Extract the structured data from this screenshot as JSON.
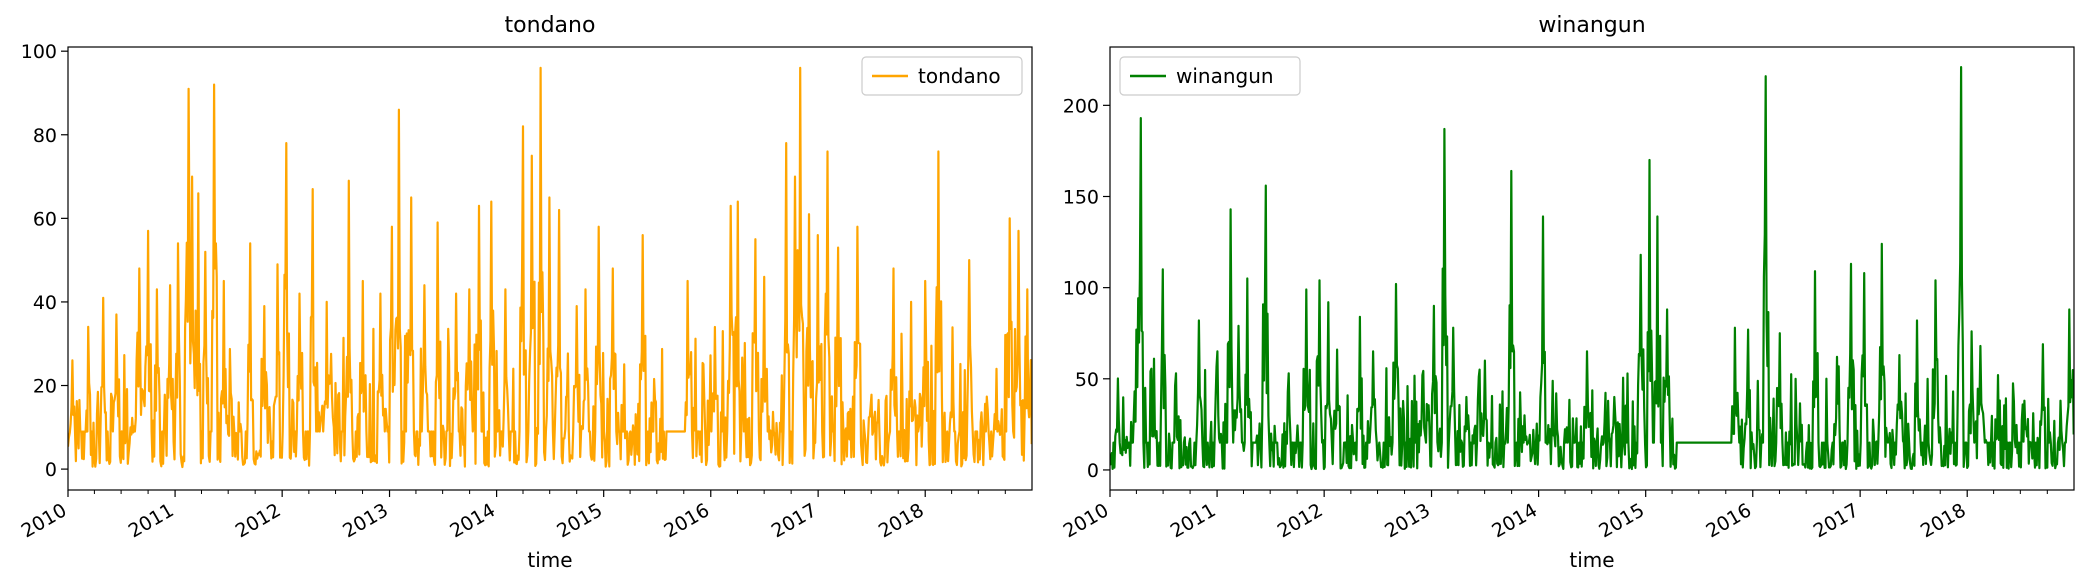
{
  "chart_data": [
    {
      "type": "line",
      "title": "tondano",
      "xlabel": "time",
      "ylabel": "",
      "x_tick_labels": [
        "2010",
        "2011",
        "2012",
        "2013",
        "2014",
        "2015",
        "2016",
        "2017",
        "2018"
      ],
      "y_tick_labels": [
        "0",
        "20",
        "40",
        "60",
        "80",
        "100"
      ],
      "xlim": [
        "2010-01-01",
        "2018-12-31"
      ],
      "ylim": [
        -5,
        101
      ],
      "legend": {
        "position": "upper right",
        "entries": [
          "tondano"
        ]
      },
      "grid": false,
      "series": [
        {
          "name": "tondano",
          "color": "#ffa500",
          "baseline": 9,
          "gap": [
            "2015-08-01",
            "2015-10-15"
          ],
          "peaks": [
            [
              "2010-01-15",
              26
            ],
            [
              "2010-03-10",
              30
            ],
            [
              "2010-05-01",
              41
            ],
            [
              "2010-06-15",
              37
            ],
            [
              "2010-09-01",
              48
            ],
            [
              "2010-10-01",
              57
            ],
            [
              "2010-11-01",
              43
            ],
            [
              "2010-12-15",
              44
            ],
            [
              "2011-01-10",
              54
            ],
            [
              "2011-02-15",
              91
            ],
            [
              "2011-03-01",
              70
            ],
            [
              "2011-03-20",
              66
            ],
            [
              "2011-04-15",
              52
            ],
            [
              "2011-05-15",
              92
            ],
            [
              "2011-06-15",
              45
            ],
            [
              "2011-09-15",
              54
            ],
            [
              "2011-11-01",
              39
            ],
            [
              "2011-12-15",
              49
            ],
            [
              "2012-01-15",
              78
            ],
            [
              "2012-03-01",
              42
            ],
            [
              "2012-04-15",
              67
            ],
            [
              "2012-06-01",
              40
            ],
            [
              "2012-08-15",
              69
            ],
            [
              "2012-10-01",
              45
            ],
            [
              "2012-12-01",
              42
            ],
            [
              "2013-01-10",
              58
            ],
            [
              "2013-02-01",
              86
            ],
            [
              "2013-03-15",
              65
            ],
            [
              "2013-05-01",
              44
            ],
            [
              "2013-06-15",
              59
            ],
            [
              "2013-08-15",
              42
            ],
            [
              "2013-10-01",
              43
            ],
            [
              "2013-11-01",
              63
            ],
            [
              "2013-12-15",
              64
            ],
            [
              "2014-02-01",
              43
            ],
            [
              "2014-04-01",
              82
            ],
            [
              "2014-05-01",
              75
            ],
            [
              "2014-06-01",
              96
            ],
            [
              "2014-07-01",
              65
            ],
            [
              "2014-08-01",
              62
            ],
            [
              "2014-10-01",
              39
            ],
            [
              "2014-11-01",
              43
            ],
            [
              "2014-12-15",
              58
            ],
            [
              "2015-02-01",
              48
            ],
            [
              "2015-05-15",
              56
            ],
            [
              "2015-10-15",
              45
            ],
            [
              "2016-01-15",
              34
            ],
            [
              "2016-03-10",
              63
            ],
            [
              "2016-04-01",
              64
            ],
            [
              "2016-06-01",
              55
            ],
            [
              "2016-07-01",
              46
            ],
            [
              "2016-09-15",
              78
            ],
            [
              "2016-10-15",
              70
            ],
            [
              "2016-11-01",
              96
            ],
            [
              "2016-12-01",
              61
            ],
            [
              "2017-01-01",
              56
            ],
            [
              "2017-02-01",
              76
            ],
            [
              "2017-03-10",
              53
            ],
            [
              "2017-05-15",
              58
            ],
            [
              "2017-09-15",
              48
            ],
            [
              "2017-11-15",
              40
            ],
            [
              "2018-01-01",
              45
            ],
            [
              "2018-02-15",
              76
            ],
            [
              "2018-06-01",
              50
            ],
            [
              "2018-09-01",
              24
            ],
            [
              "2018-10-15",
              60
            ],
            [
              "2018-11-15",
              57
            ],
            [
              "2018-12-15",
              43
            ]
          ]
        }
      ]
    },
    {
      "type": "line",
      "title": "winangun",
      "xlabel": "time",
      "ylabel": "",
      "x_tick_labels": [
        "2010",
        "2011",
        "2012",
        "2013",
        "2014",
        "2015",
        "2016",
        "2017",
        "2018"
      ],
      "y_tick_labels": [
        "0",
        "50",
        "100",
        "150",
        "200"
      ],
      "xlim": [
        "2010-01-01",
        "2018-12-31"
      ],
      "ylim": [
        -11,
        232
      ],
      "legend": {
        "position": "upper left",
        "entries": [
          "winangun"
        ]
      },
      "grid": false,
      "series": [
        {
          "name": "winangun",
          "color": "#008000",
          "baseline": 15,
          "gap": [
            "2015-04-15",
            "2015-10-25"
          ],
          "peaks": [
            [
              "2010-02-15",
              32
            ],
            [
              "2010-04-01",
              77
            ],
            [
              "2010-04-15",
              193
            ],
            [
              "2010-06-01",
              61
            ],
            [
              "2010-07-01",
              110
            ],
            [
              "2010-08-15",
              53
            ],
            [
              "2010-11-01",
              82
            ],
            [
              "2011-01-01",
              65
            ],
            [
              "2011-02-15",
              143
            ],
            [
              "2011-03-15",
              79
            ],
            [
              "2011-04-15",
              105
            ],
            [
              "2011-06-15",
              156
            ],
            [
              "2011-09-01",
              53
            ],
            [
              "2011-11-01",
              99
            ],
            [
              "2011-12-15",
              104
            ],
            [
              "2012-01-15",
              92
            ],
            [
              "2012-02-15",
              66
            ],
            [
              "2012-05-01",
              84
            ],
            [
              "2012-06-15",
              65
            ],
            [
              "2012-09-01",
              102
            ],
            [
              "2012-12-01",
              52
            ],
            [
              "2013-01-10",
              90
            ],
            [
              "2013-02-15",
              187
            ],
            [
              "2013-03-15",
              78
            ],
            [
              "2013-05-01",
              40
            ],
            [
              "2013-07-01",
              60
            ],
            [
              "2013-10-01",
              164
            ],
            [
              "2013-11-15",
              30
            ],
            [
              "2014-01-15",
              139
            ],
            [
              "2014-03-01",
              42
            ],
            [
              "2014-06-15",
              65
            ],
            [
              "2014-09-15",
              40
            ],
            [
              "2014-12-15",
              118
            ],
            [
              "2015-01-15",
              170
            ],
            [
              "2015-02-10",
              139
            ],
            [
              "2015-03-15",
              88
            ],
            [
              "2015-11-01",
              78
            ],
            [
              "2015-12-15",
              77
            ],
            [
              "2016-02-15",
              216
            ],
            [
              "2016-04-01",
              75
            ],
            [
              "2016-08-01",
              109
            ],
            [
              "2016-10-15",
              62
            ],
            [
              "2016-12-01",
              113
            ],
            [
              "2017-01-15",
              108
            ],
            [
              "2017-03-15",
              124
            ],
            [
              "2017-05-15",
              63
            ],
            [
              "2017-07-15",
              82
            ],
            [
              "2017-09-15",
              104
            ],
            [
              "2017-12-10",
              221
            ],
            [
              "2018-01-15",
              76
            ],
            [
              "2018-02-15",
              68
            ],
            [
              "2018-04-15",
              52
            ],
            [
              "2018-07-15",
              38
            ],
            [
              "2018-09-15",
              69
            ],
            [
              "2018-11-15",
              38
            ],
            [
              "2018-12-15",
              88
            ]
          ]
        }
      ]
    }
  ]
}
